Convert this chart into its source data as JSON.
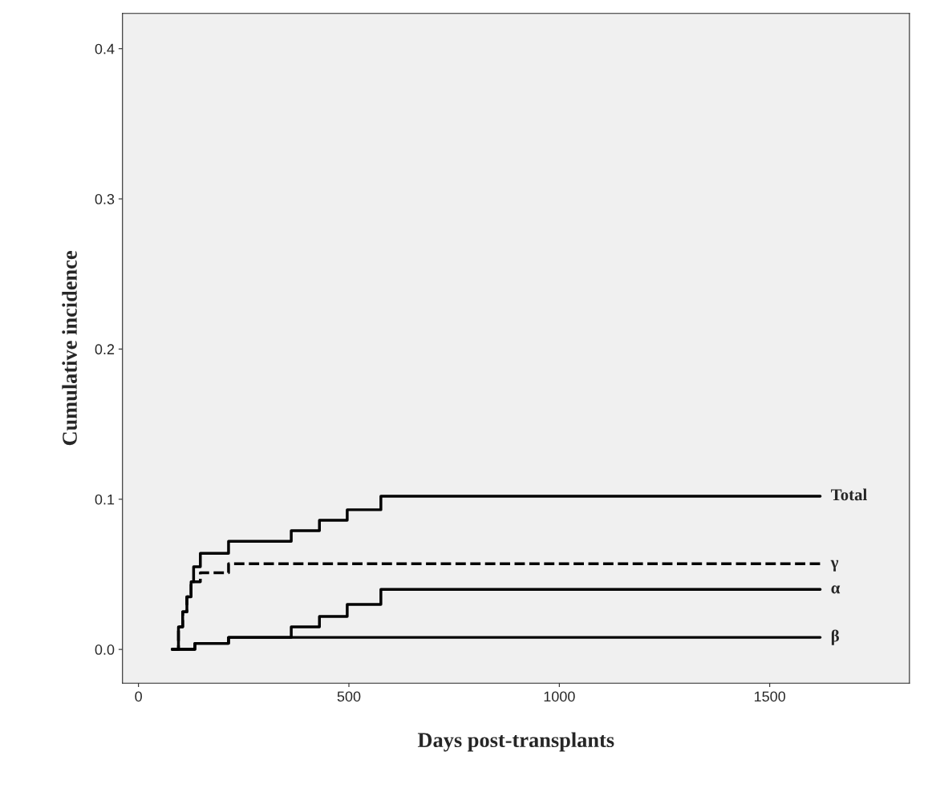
{
  "chart_data": {
    "type": "step",
    "xlabel": "Days post-transplants",
    "ylabel": "Cumulative incidence",
    "xlim": [
      -38,
      1832
    ],
    "ylim": [
      -0.0225,
      0.4235
    ],
    "xticks": [
      0,
      500,
      1000,
      1500
    ],
    "yticks": [
      {
        "value": 0,
        "label": "0.0"
      },
      {
        "value": 0.1,
        "label": "0.1"
      },
      {
        "value": 0.2,
        "label": "0.2"
      },
      {
        "value": 0.3,
        "label": "0.3"
      },
      {
        "value": 0.4,
        "label": "0.4"
      }
    ],
    "grid": false,
    "legend": false,
    "line_style": "solid",
    "series": [
      {
        "name": "Total",
        "color": "#000000",
        "x": [
          80,
          95,
          105,
          115,
          125,
          131,
          147,
          214,
          363,
          430,
          496,
          576,
          1620
        ],
        "values": [
          0,
          0.015,
          0.025,
          0.035,
          0.045,
          0.055,
          0.064,
          0.072,
          0.079,
          0.086,
          0.093,
          0.102,
          0.102
        ]
      },
      {
        "name": "γ",
        "color": "#000000",
        "line_style": "dashed",
        "x": [
          80,
          95,
          105,
          115,
          125,
          147,
          214,
          1620
        ],
        "values": [
          0,
          0.015,
          0.025,
          0.035,
          0.045,
          0.051,
          0.057,
          0.057
        ]
      },
      {
        "name": "α",
        "color": "#000000",
        "x": [
          80,
          134,
          214,
          363,
          430,
          496,
          576,
          1620
        ],
        "values": [
          0,
          0.004,
          0.008,
          0.015,
          0.022,
          0.03,
          0.04,
          0.04
        ]
      },
      {
        "name": "β",
        "color": "#000000",
        "x": [
          80,
          134,
          214,
          1620
        ],
        "values": [
          0,
          0.004,
          0.008,
          0.008
        ]
      }
    ]
  }
}
